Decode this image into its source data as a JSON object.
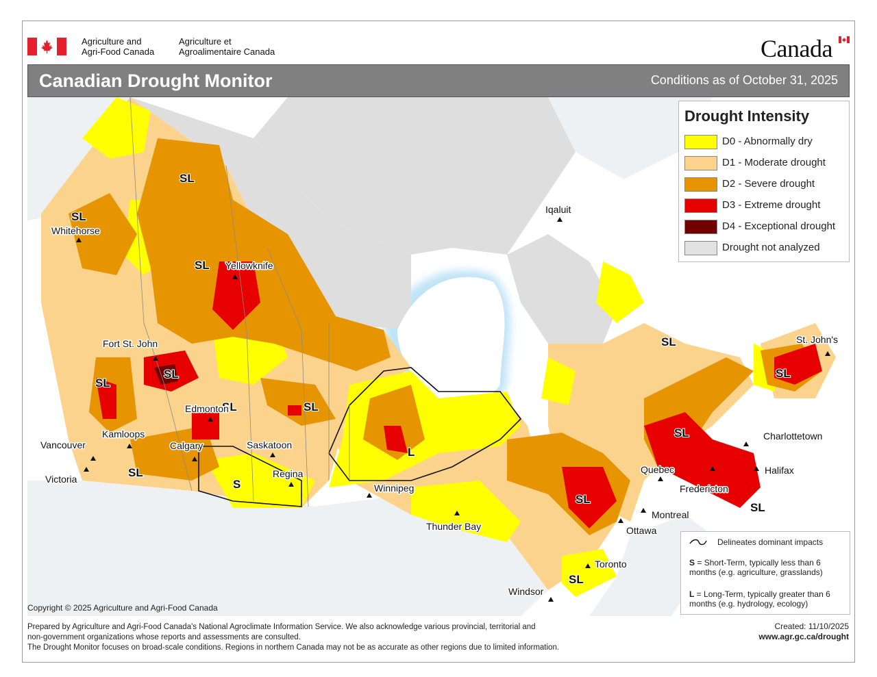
{
  "header": {
    "dept_en_line1": "Agriculture and",
    "dept_en_line2": "Agri-Food Canada",
    "dept_fr_line1": "Agriculture et",
    "dept_fr_line2": "Agroalimentaire Canada",
    "wordmark": "Canada",
    "title": "Canadian Drought Monitor",
    "conditions": "Conditions as of October 31, 2025"
  },
  "legend": {
    "title": "Drought Intensity",
    "items": [
      {
        "label": "D0 - Abnormally dry",
        "color": "#ffff00"
      },
      {
        "label": "D1 - Moderate drought",
        "color": "#fcd38c"
      },
      {
        "label": "D2 - Severe drought",
        "color": "#e69500"
      },
      {
        "label": "D3 - Extreme drought",
        "color": "#e60000"
      },
      {
        "label": "D4 - Exceptional drought",
        "color": "#730000"
      },
      {
        "label": "Drought not analyzed",
        "color": "#e1e1e1"
      }
    ]
  },
  "impacts": {
    "delineates": "Delineates dominant impacts",
    "s_key": "S",
    "s_text": " = Short-Term, typically less than 6 months (e.g. agriculture, grasslands)",
    "l_key": "L",
    "l_text": " = Long-Term, typically greater  than 6 months (e.g. hydrology, ecology)"
  },
  "cities": [
    {
      "name": "Whitehorse"
    },
    {
      "name": "Yellowknife"
    },
    {
      "name": "Iqaluit"
    },
    {
      "name": "Fort St. John"
    },
    {
      "name": "Edmonton"
    },
    {
      "name": "Kamloops"
    },
    {
      "name": "Vancouver"
    },
    {
      "name": "Victoria"
    },
    {
      "name": "Calgary"
    },
    {
      "name": "Saskatoon"
    },
    {
      "name": "Regina"
    },
    {
      "name": "Winnipeg"
    },
    {
      "name": "Thunder Bay"
    },
    {
      "name": "Toronto"
    },
    {
      "name": "Windsor"
    },
    {
      "name": "Ottawa"
    },
    {
      "name": "Montreal"
    },
    {
      "name": "Quebec"
    },
    {
      "name": "Fredericton"
    },
    {
      "name": "Halifax"
    },
    {
      "name": "Charlottetown"
    },
    {
      "name": "St. John's"
    }
  ],
  "impact_labels": {
    "sl": "SL",
    "s": "S",
    "l": "L"
  },
  "footer": {
    "copyright": "Copyright © 2025 Agriculture and Agri-Food Canada",
    "line1": "Prepared by Agriculture and Agri-Food Canada's National Agroclimate Information Service.  We also acknowledge various provincial, territorial and",
    "line2": "non-government organizations whose reports and assessments are consulted.",
    "line3": "The Drought Monitor focuses on broad-scale conditions.  Regions in northern Canada may not be as accurate as other regions due to limited information.",
    "created": "Created: 11/10/2025",
    "url": "www.agr.gc.ca/drought"
  }
}
